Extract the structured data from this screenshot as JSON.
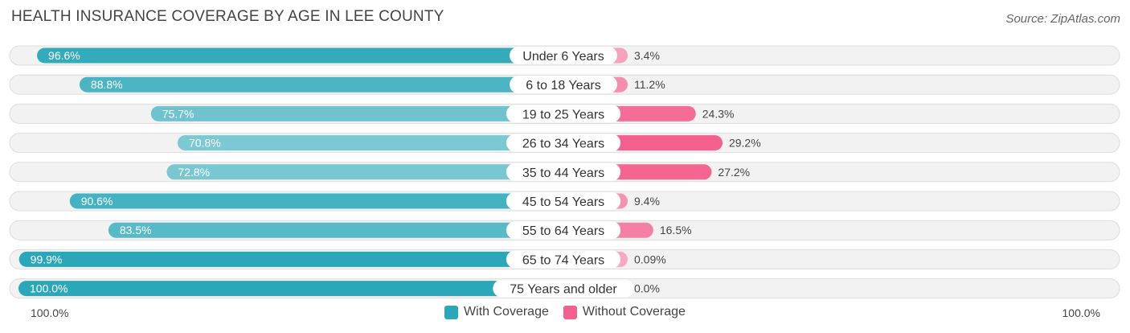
{
  "chart_data": {
    "type": "bar",
    "orientation": "horizontal-diverging",
    "title": "HEALTH INSURANCE COVERAGE BY AGE IN LEE COUNTY",
    "source": "Source: ZipAtlas.com",
    "categories": [
      "Under 6 Years",
      "6 to 18 Years",
      "19 to 25 Years",
      "26 to 34 Years",
      "35 to 44 Years",
      "45 to 54 Years",
      "55 to 64 Years",
      "65 to 74 Years",
      "75 Years and older"
    ],
    "series": [
      {
        "name": "With Coverage",
        "values": [
          96.6,
          88.8,
          75.7,
          70.8,
          72.8,
          90.6,
          83.5,
          99.9,
          100.0
        ],
        "labels": [
          "96.6%",
          "88.8%",
          "75.7%",
          "70.8%",
          "72.8%",
          "90.6%",
          "83.5%",
          "99.9%",
          "100.0%"
        ],
        "color": "#2aa7b8",
        "color_light": "#8ccfd8"
      },
      {
        "name": "Without Coverage",
        "values": [
          3.4,
          11.2,
          24.3,
          29.2,
          27.2,
          9.4,
          16.5,
          0.09,
          0.0
        ],
        "labels": [
          "3.4%",
          "11.2%",
          "24.3%",
          "29.2%",
          "27.2%",
          "9.4%",
          "16.5%",
          "0.09%",
          "0.0%"
        ],
        "color": "#f4608e",
        "color_light": "#f8b6cb"
      }
    ],
    "xlim": [
      0,
      100
    ],
    "axis_labels": {
      "left": "100.0%",
      "right": "100.0%"
    },
    "legend": "bottom-center"
  }
}
